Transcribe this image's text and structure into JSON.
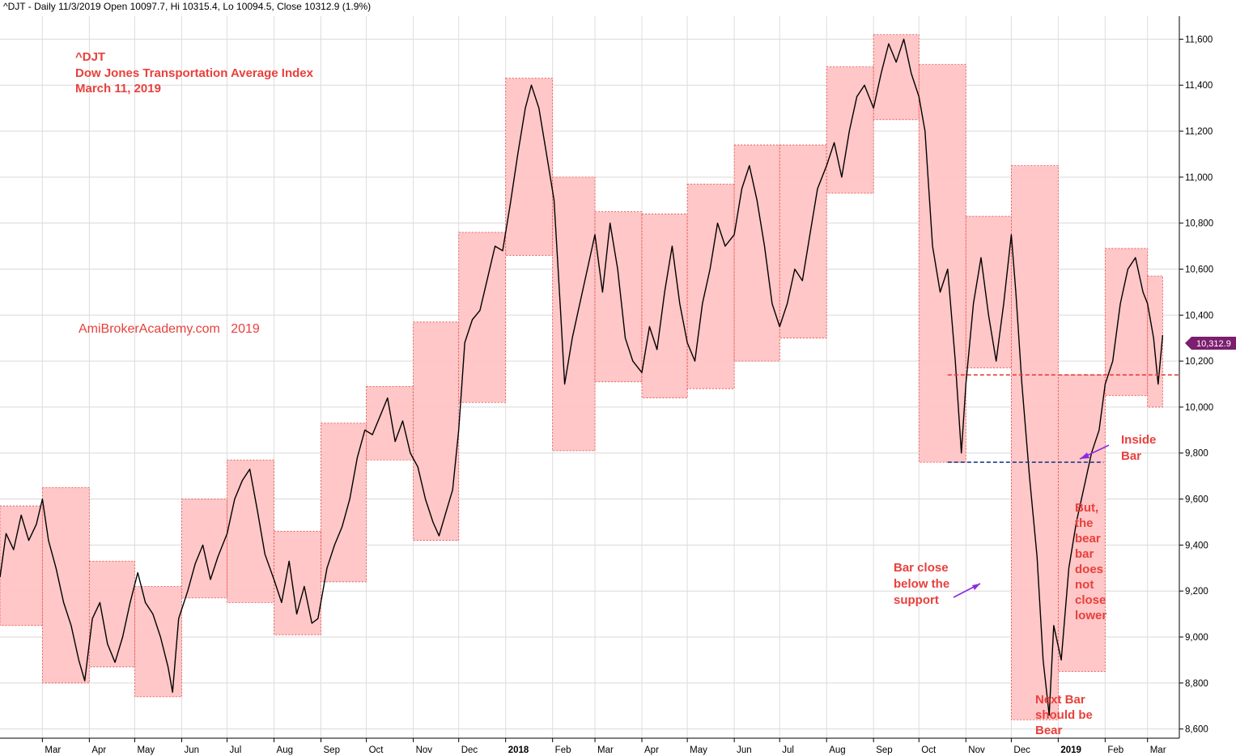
{
  "header": {
    "text": "^DJT - Daily 11/3/2019 Open 10097.7, Hi 10315.4, Lo 10094.5, Close 10312.9 (1.9%)"
  },
  "title_block": {
    "line1": "^DJT",
    "line2": "Dow Jones Transportation Average Index",
    "line3": "March 11, 2019"
  },
  "watermark": "AmiBrokerAcademy.com   2019",
  "last_price_label": "10,312.9",
  "annotations": {
    "inside_bar": [
      "Inside",
      "Bar"
    ],
    "bar_close": [
      "Bar close",
      "below the",
      "support"
    ],
    "but_bear": [
      "But,",
      "the",
      "bear",
      "bar",
      "does",
      "not",
      "close",
      "lower"
    ],
    "next_bar": [
      "Next Bar",
      "should be",
      "Bear"
    ]
  },
  "colors": {
    "box_fill": "#ffc4c4",
    "box_border": "#e34a4a",
    "price_line": "#000000",
    "annotation": "#e8403c",
    "support_line": "#1f3f8a",
    "resistance_line": "#e8403c",
    "arrow": "#8a2be2",
    "price_badge": "#7b1f6e"
  },
  "chart_data": {
    "type": "line",
    "title": "Dow Jones Transportation Average Index",
    "ylim": [
      8560,
      11700
    ],
    "y_ticks": [
      8600,
      8800,
      9000,
      9200,
      9400,
      9600,
      9800,
      10000,
      10200,
      10400,
      10600,
      10800,
      11000,
      11200,
      11400,
      11600
    ],
    "y_tick_labels": [
      "8,600",
      "8,800",
      "9,000",
      "9,200",
      "9,400",
      "9,600",
      "9,800",
      "10,000",
      "10,200",
      "10,400",
      "10,600",
      "10,800",
      "11,000",
      "11,200",
      "11,400",
      "11,600"
    ],
    "x_range": [
      "2017-02-01",
      "2019-03-22"
    ],
    "x_ticks": [
      {
        "label": "Mar",
        "date": "2017-03-01",
        "bold": false
      },
      {
        "label": "Apr",
        "date": "2017-04-01",
        "bold": false
      },
      {
        "label": "May",
        "date": "2017-05-01",
        "bold": false
      },
      {
        "label": "Jun",
        "date": "2017-06-01",
        "bold": false
      },
      {
        "label": "Jul",
        "date": "2017-07-01",
        "bold": false
      },
      {
        "label": "Aug",
        "date": "2017-08-01",
        "bold": false
      },
      {
        "label": "Sep",
        "date": "2017-09-01",
        "bold": false
      },
      {
        "label": "Oct",
        "date": "2017-10-01",
        "bold": false
      },
      {
        "label": "Nov",
        "date": "2017-11-01",
        "bold": false
      },
      {
        "label": "Dec",
        "date": "2017-12-01",
        "bold": false
      },
      {
        "label": "2018",
        "date": "2018-01-01",
        "bold": true
      },
      {
        "label": "Feb",
        "date": "2018-02-01",
        "bold": false
      },
      {
        "label": "Mar",
        "date": "2018-03-01",
        "bold": false
      },
      {
        "label": "Apr",
        "date": "2018-04-01",
        "bold": false
      },
      {
        "label": "May",
        "date": "2018-05-01",
        "bold": false
      },
      {
        "label": "Jun",
        "date": "2018-06-01",
        "bold": false
      },
      {
        "label": "Jul",
        "date": "2018-07-01",
        "bold": false
      },
      {
        "label": "Aug",
        "date": "2018-08-01",
        "bold": false
      },
      {
        "label": "Sep",
        "date": "2018-09-01",
        "bold": false
      },
      {
        "label": "Oct",
        "date": "2018-10-01",
        "bold": false
      },
      {
        "label": "Nov",
        "date": "2018-11-01",
        "bold": false
      },
      {
        "label": "Dec",
        "date": "2018-12-01",
        "bold": false
      },
      {
        "label": "2019",
        "date": "2019-01-01",
        "bold": true
      },
      {
        "label": "Feb",
        "date": "2019-02-01",
        "bold": false
      },
      {
        "label": "Mar",
        "date": "2019-03-01",
        "bold": false
      }
    ],
    "monthly_ranges": [
      {
        "start": "2017-02-01",
        "end": "2017-03-01",
        "high": 9570,
        "low": 9050
      },
      {
        "start": "2017-03-01",
        "end": "2017-04-01",
        "high": 9650,
        "low": 8800
      },
      {
        "start": "2017-04-01",
        "end": "2017-05-01",
        "high": 9330,
        "low": 8870
      },
      {
        "start": "2017-05-01",
        "end": "2017-06-01",
        "high": 9220,
        "low": 8740
      },
      {
        "start": "2017-06-01",
        "end": "2017-07-01",
        "high": 9600,
        "low": 9170
      },
      {
        "start": "2017-07-01",
        "end": "2017-08-01",
        "high": 9770,
        "low": 9150
      },
      {
        "start": "2017-08-01",
        "end": "2017-09-01",
        "high": 9460,
        "low": 9010
      },
      {
        "start": "2017-09-01",
        "end": "2017-10-01",
        "high": 9930,
        "low": 9240
      },
      {
        "start": "2017-10-01",
        "end": "2017-11-01",
        "high": 10090,
        "low": 9770
      },
      {
        "start": "2017-11-01",
        "end": "2017-12-01",
        "high": 10370,
        "low": 9420
      },
      {
        "start": "2017-12-01",
        "end": "2018-01-01",
        "high": 10760,
        "low": 10020
      },
      {
        "start": "2018-01-01",
        "end": "2018-02-01",
        "high": 11430,
        "low": 10660
      },
      {
        "start": "2018-02-01",
        "end": "2018-03-01",
        "high": 11000,
        "low": 9810
      },
      {
        "start": "2018-03-01",
        "end": "2018-04-01",
        "high": 10850,
        "low": 10110
      },
      {
        "start": "2018-04-01",
        "end": "2018-05-01",
        "high": 10840,
        "low": 10040
      },
      {
        "start": "2018-05-01",
        "end": "2018-06-01",
        "high": 10970,
        "low": 10080
      },
      {
        "start": "2018-06-01",
        "end": "2018-07-01",
        "high": 11140,
        "low": 10200
      },
      {
        "start": "2018-07-01",
        "end": "2018-08-01",
        "high": 11140,
        "low": 10300
      },
      {
        "start": "2018-08-01",
        "end": "2018-09-01",
        "high": 11480,
        "low": 10930
      },
      {
        "start": "2018-09-01",
        "end": "2018-10-01",
        "high": 11620,
        "low": 11250
      },
      {
        "start": "2018-10-01",
        "end": "2018-11-01",
        "high": 11490,
        "low": 9760
      },
      {
        "start": "2018-11-01",
        "end": "2018-12-01",
        "high": 10830,
        "low": 10170
      },
      {
        "start": "2018-12-01",
        "end": "2019-01-01",
        "high": 11050,
        "low": 8640
      },
      {
        "start": "2019-01-01",
        "end": "2019-02-01",
        "high": 10140,
        "low": 8850
      },
      {
        "start": "2019-02-01",
        "end": "2019-03-01",
        "high": 10690,
        "low": 10050
      },
      {
        "start": "2019-03-01",
        "end": "2019-03-11",
        "high": 10570,
        "low": 10000
      }
    ],
    "series": [
      {
        "name": "",
        "points": [
          [
            "2017-02-01",
            9260
          ],
          [
            "2017-02-05",
            9450
          ],
          [
            "2017-02-10",
            9380
          ],
          [
            "2017-02-15",
            9530
          ],
          [
            "2017-02-20",
            9420
          ],
          [
            "2017-02-25",
            9490
          ],
          [
            "2017-03-01",
            9600
          ],
          [
            "2017-03-05",
            9420
          ],
          [
            "2017-03-10",
            9300
          ],
          [
            "2017-03-15",
            9150
          ],
          [
            "2017-03-20",
            9050
          ],
          [
            "2017-03-25",
            8900
          ],
          [
            "2017-03-29",
            8810
          ],
          [
            "2017-04-03",
            9080
          ],
          [
            "2017-04-08",
            9150
          ],
          [
            "2017-04-13",
            8970
          ],
          [
            "2017-04-18",
            8890
          ],
          [
            "2017-04-23",
            9000
          ],
          [
            "2017-04-28",
            9150
          ],
          [
            "2017-05-03",
            9280
          ],
          [
            "2017-05-08",
            9150
          ],
          [
            "2017-05-13",
            9100
          ],
          [
            "2017-05-18",
            9000
          ],
          [
            "2017-05-23",
            8870
          ],
          [
            "2017-05-26",
            8760
          ],
          [
            "2017-05-30",
            9080
          ],
          [
            "2017-06-05",
            9200
          ],
          [
            "2017-06-10",
            9320
          ],
          [
            "2017-06-15",
            9400
          ],
          [
            "2017-06-20",
            9250
          ],
          [
            "2017-06-25",
            9350
          ],
          [
            "2017-07-01",
            9450
          ],
          [
            "2017-07-06",
            9600
          ],
          [
            "2017-07-11",
            9680
          ],
          [
            "2017-07-16",
            9730
          ],
          [
            "2017-07-21",
            9550
          ],
          [
            "2017-07-26",
            9360
          ],
          [
            "2017-08-01",
            9250
          ],
          [
            "2017-08-06",
            9150
          ],
          [
            "2017-08-11",
            9330
          ],
          [
            "2017-08-16",
            9100
          ],
          [
            "2017-08-21",
            9220
          ],
          [
            "2017-08-26",
            9060
          ],
          [
            "2017-08-30",
            9080
          ],
          [
            "2017-09-05",
            9300
          ],
          [
            "2017-09-10",
            9400
          ],
          [
            "2017-09-15",
            9480
          ],
          [
            "2017-09-20",
            9600
          ],
          [
            "2017-09-25",
            9780
          ],
          [
            "2017-09-30",
            9900
          ],
          [
            "2017-10-05",
            9880
          ],
          [
            "2017-10-10",
            9960
          ],
          [
            "2017-10-15",
            10040
          ],
          [
            "2017-10-20",
            9850
          ],
          [
            "2017-10-25",
            9940
          ],
          [
            "2017-10-30",
            9800
          ],
          [
            "2017-11-04",
            9740
          ],
          [
            "2017-11-09",
            9600
          ],
          [
            "2017-11-14",
            9500
          ],
          [
            "2017-11-18",
            9440
          ],
          [
            "2017-11-22",
            9530
          ],
          [
            "2017-11-27",
            9640
          ],
          [
            "2017-12-01",
            9900
          ],
          [
            "2017-12-05",
            10280
          ],
          [
            "2017-12-10",
            10380
          ],
          [
            "2017-12-15",
            10420
          ],
          [
            "2017-12-20",
            10560
          ],
          [
            "2017-12-25",
            10700
          ],
          [
            "2017-12-30",
            10680
          ],
          [
            "2018-01-04",
            10880
          ],
          [
            "2018-01-09",
            11100
          ],
          [
            "2018-01-14",
            11300
          ],
          [
            "2018-01-18",
            11400
          ],
          [
            "2018-01-23",
            11300
          ],
          [
            "2018-01-28",
            11100
          ],
          [
            "2018-02-02",
            10900
          ],
          [
            "2018-02-06",
            10450
          ],
          [
            "2018-02-09",
            10100
          ],
          [
            "2018-02-14",
            10300
          ],
          [
            "2018-02-19",
            10450
          ],
          [
            "2018-02-24",
            10600
          ],
          [
            "2018-03-01",
            10750
          ],
          [
            "2018-03-06",
            10500
          ],
          [
            "2018-03-11",
            10800
          ],
          [
            "2018-03-16",
            10600
          ],
          [
            "2018-03-21",
            10300
          ],
          [
            "2018-03-26",
            10200
          ],
          [
            "2018-04-01",
            10150
          ],
          [
            "2018-04-06",
            10350
          ],
          [
            "2018-04-11",
            10250
          ],
          [
            "2018-04-16",
            10500
          ],
          [
            "2018-04-21",
            10700
          ],
          [
            "2018-04-26",
            10450
          ],
          [
            "2018-05-01",
            10280
          ],
          [
            "2018-05-06",
            10200
          ],
          [
            "2018-05-11",
            10450
          ],
          [
            "2018-05-16",
            10600
          ],
          [
            "2018-05-21",
            10800
          ],
          [
            "2018-05-26",
            10700
          ],
          [
            "2018-06-01",
            10750
          ],
          [
            "2018-06-06",
            10950
          ],
          [
            "2018-06-11",
            11050
          ],
          [
            "2018-06-16",
            10900
          ],
          [
            "2018-06-21",
            10700
          ],
          [
            "2018-06-26",
            10450
          ],
          [
            "2018-07-01",
            10350
          ],
          [
            "2018-07-06",
            10450
          ],
          [
            "2018-07-11",
            10600
          ],
          [
            "2018-07-16",
            10550
          ],
          [
            "2018-07-21",
            10750
          ],
          [
            "2018-07-26",
            10950
          ],
          [
            "2018-08-01",
            11050
          ],
          [
            "2018-08-06",
            11150
          ],
          [
            "2018-08-11",
            11000
          ],
          [
            "2018-08-16",
            11200
          ],
          [
            "2018-08-21",
            11350
          ],
          [
            "2018-08-26",
            11400
          ],
          [
            "2018-09-01",
            11300
          ],
          [
            "2018-09-06",
            11450
          ],
          [
            "2018-09-11",
            11580
          ],
          [
            "2018-09-16",
            11500
          ],
          [
            "2018-09-21",
            11600
          ],
          [
            "2018-09-26",
            11450
          ],
          [
            "2018-10-01",
            11350
          ],
          [
            "2018-10-05",
            11200
          ],
          [
            "2018-10-10",
            10700
          ],
          [
            "2018-10-15",
            10500
          ],
          [
            "2018-10-20",
            10600
          ],
          [
            "2018-10-25",
            10200
          ],
          [
            "2018-10-29",
            9800
          ],
          [
            "2018-11-01",
            10100
          ],
          [
            "2018-11-06",
            10450
          ],
          [
            "2018-11-11",
            10650
          ],
          [
            "2018-11-16",
            10400
          ],
          [
            "2018-11-21",
            10200
          ],
          [
            "2018-11-26",
            10450
          ],
          [
            "2018-12-01",
            10750
          ],
          [
            "2018-12-04",
            10500
          ],
          [
            "2018-12-08",
            10100
          ],
          [
            "2018-12-13",
            9700
          ],
          [
            "2018-12-18",
            9350
          ],
          [
            "2018-12-22",
            8900
          ],
          [
            "2018-12-26",
            8660
          ],
          [
            "2018-12-29",
            9050
          ],
          [
            "2019-01-03",
            8900
          ],
          [
            "2019-01-08",
            9300
          ],
          [
            "2019-01-13",
            9500
          ],
          [
            "2019-01-18",
            9650
          ],
          [
            "2019-01-23",
            9800
          ],
          [
            "2019-01-28",
            9900
          ],
          [
            "2019-02-01",
            10100
          ],
          [
            "2019-02-06",
            10200
          ],
          [
            "2019-02-11",
            10450
          ],
          [
            "2019-02-16",
            10600
          ],
          [
            "2019-02-21",
            10650
          ],
          [
            "2019-02-26",
            10500
          ],
          [
            "2019-03-01",
            10450
          ],
          [
            "2019-03-05",
            10300
          ],
          [
            "2019-03-08",
            10100
          ],
          [
            "2019-03-11",
            10313
          ]
        ]
      }
    ],
    "support_line": {
      "value": 9760,
      "from": "2018-10-20",
      "to": "2019-01-31"
    },
    "resistance_line": {
      "value": 10140,
      "from": "2018-10-20",
      "to": "2019-03-22"
    }
  }
}
